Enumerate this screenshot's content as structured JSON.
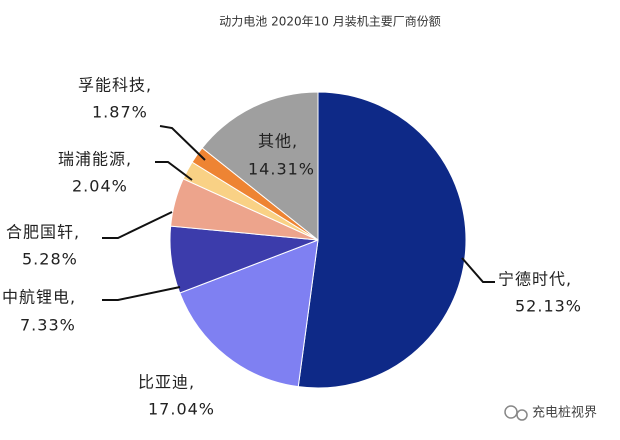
{
  "chart_data": {
    "type": "pie",
    "title": "动力电池 2020年10 月装机主要厂商份额",
    "categories": [
      "宁德时代,",
      "比亚迪,",
      "中航锂电,",
      "合肥国轩,",
      "瑞浦能源,",
      "孚能科技,",
      "其他,"
    ],
    "values": [
      52.13,
      17.04,
      7.33,
      5.28,
      2.04,
      1.87,
      14.31
    ],
    "value_labels": [
      "52.13%",
      "17.04%",
      "7.33%",
      "5.28%",
      "2.04%",
      "1.87%",
      "14.31%"
    ],
    "colors": [
      "#0e2987",
      "#7f80f2",
      "#3c3cab",
      "#eda48c",
      "#f9d185",
      "#ee8433",
      "#9f9f9f"
    ],
    "watermark": "充电桩视界"
  }
}
